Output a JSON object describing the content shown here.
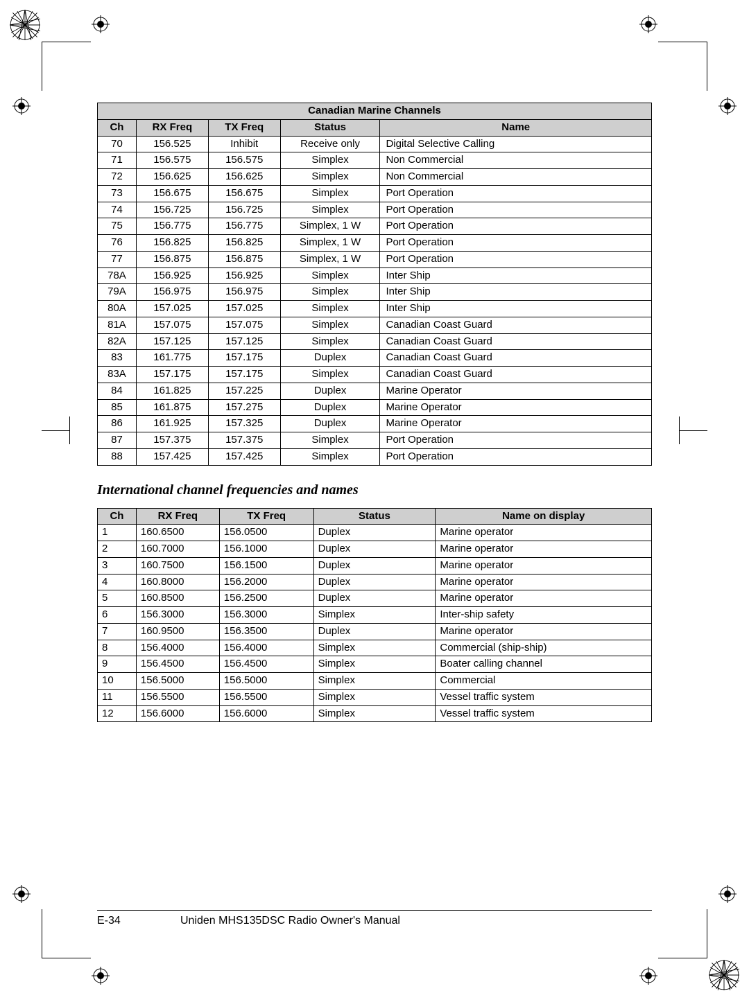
{
  "table1": {
    "title": "Canadian Marine Channels",
    "columns": [
      "Ch",
      "RX Freq",
      "TX Freq",
      "Status",
      "Name"
    ],
    "rows": [
      [
        "70",
        "156.525",
        "Inhibit",
        "Receive only",
        "Digital Selective Calling"
      ],
      [
        "71",
        "156.575",
        "156.575",
        "Simplex",
        "Non Commercial"
      ],
      [
        "72",
        "156.625",
        "156.625",
        "Simplex",
        "Non Commercial"
      ],
      [
        "73",
        "156.675",
        "156.675",
        "Simplex",
        "Port Operation"
      ],
      [
        "74",
        "156.725",
        "156.725",
        "Simplex",
        "Port Operation"
      ],
      [
        "75",
        "156.775",
        "156.775",
        "Simplex, 1 W",
        "Port Operation"
      ],
      [
        "76",
        "156.825",
        "156.825",
        "Simplex, 1 W",
        "Port Operation"
      ],
      [
        "77",
        "156.875",
        "156.875",
        "Simplex, 1 W",
        "Port Operation"
      ],
      [
        "78A",
        "156.925",
        "156.925",
        "Simplex",
        "Inter Ship"
      ],
      [
        "79A",
        "156.975",
        "156.975",
        "Simplex",
        "Inter Ship"
      ],
      [
        "80A",
        "157.025",
        "157.025",
        "Simplex",
        "Inter Ship"
      ],
      [
        "81A",
        "157.075",
        "157.075",
        "Simplex",
        "Canadian Coast Guard"
      ],
      [
        "82A",
        "157.125",
        "157.125",
        "Simplex",
        "Canadian Coast Guard"
      ],
      [
        "83",
        "161.775",
        "157.175",
        "Duplex",
        "Canadian Coast Guard"
      ],
      [
        "83A",
        "157.175",
        "157.175",
        "Simplex",
        "Canadian Coast Guard"
      ],
      [
        "84",
        "161.825",
        "157.225",
        "Duplex",
        "Marine Operator"
      ],
      [
        "85",
        "161.875",
        "157.275",
        "Duplex",
        "Marine Operator"
      ],
      [
        "86",
        "161.925",
        "157.325",
        "Duplex",
        "Marine Operator"
      ],
      [
        "87",
        "157.375",
        "157.375",
        "Simplex",
        "Port Operation"
      ],
      [
        "88",
        "157.425",
        "157.425",
        "Simplex",
        "Port Operation"
      ]
    ]
  },
  "section_heading": "International channel frequencies and names",
  "table2": {
    "columns": [
      "Ch",
      "RX Freq",
      "TX Freq",
      "Status",
      "Name on display"
    ],
    "rows": [
      [
        "1",
        "160.6500",
        "156.0500",
        "Duplex",
        "Marine operator"
      ],
      [
        "2",
        "160.7000",
        "156.1000",
        "Duplex",
        "Marine operator"
      ],
      [
        "3",
        "160.7500",
        "156.1500",
        "Duplex",
        "Marine operator"
      ],
      [
        "4",
        "160.8000",
        "156.2000",
        "Duplex",
        "Marine operator"
      ],
      [
        "5",
        "160.8500",
        "156.2500",
        "Duplex",
        "Marine operator"
      ],
      [
        "6",
        "156.3000",
        "156.3000",
        "Simplex",
        "Inter-ship safety"
      ],
      [
        "7",
        "160.9500",
        "156.3500",
        "Duplex",
        "Marine operator"
      ],
      [
        "8",
        "156.4000",
        "156.4000",
        "Simplex",
        "Commercial (ship-ship)"
      ],
      [
        "9",
        "156.4500",
        "156.4500",
        "Simplex",
        "Boater calling channel"
      ],
      [
        "10",
        "156.5000",
        "156.5000",
        "Simplex",
        "Commercial"
      ],
      [
        "11",
        "156.5500",
        "156.5500",
        "Simplex",
        "Vessel traffic system"
      ],
      [
        "12",
        "156.6000",
        "156.6000",
        "Simplex",
        "Vessel traffic system"
      ]
    ]
  },
  "footer": {
    "page": "E-34",
    "title": "Uniden MHS135DSC Radio Owner's Manual"
  },
  "style": {
    "header_bg": "#cfcfcf",
    "border_color": "#000000",
    "body_font_size": 15,
    "heading_font_size": 20
  }
}
